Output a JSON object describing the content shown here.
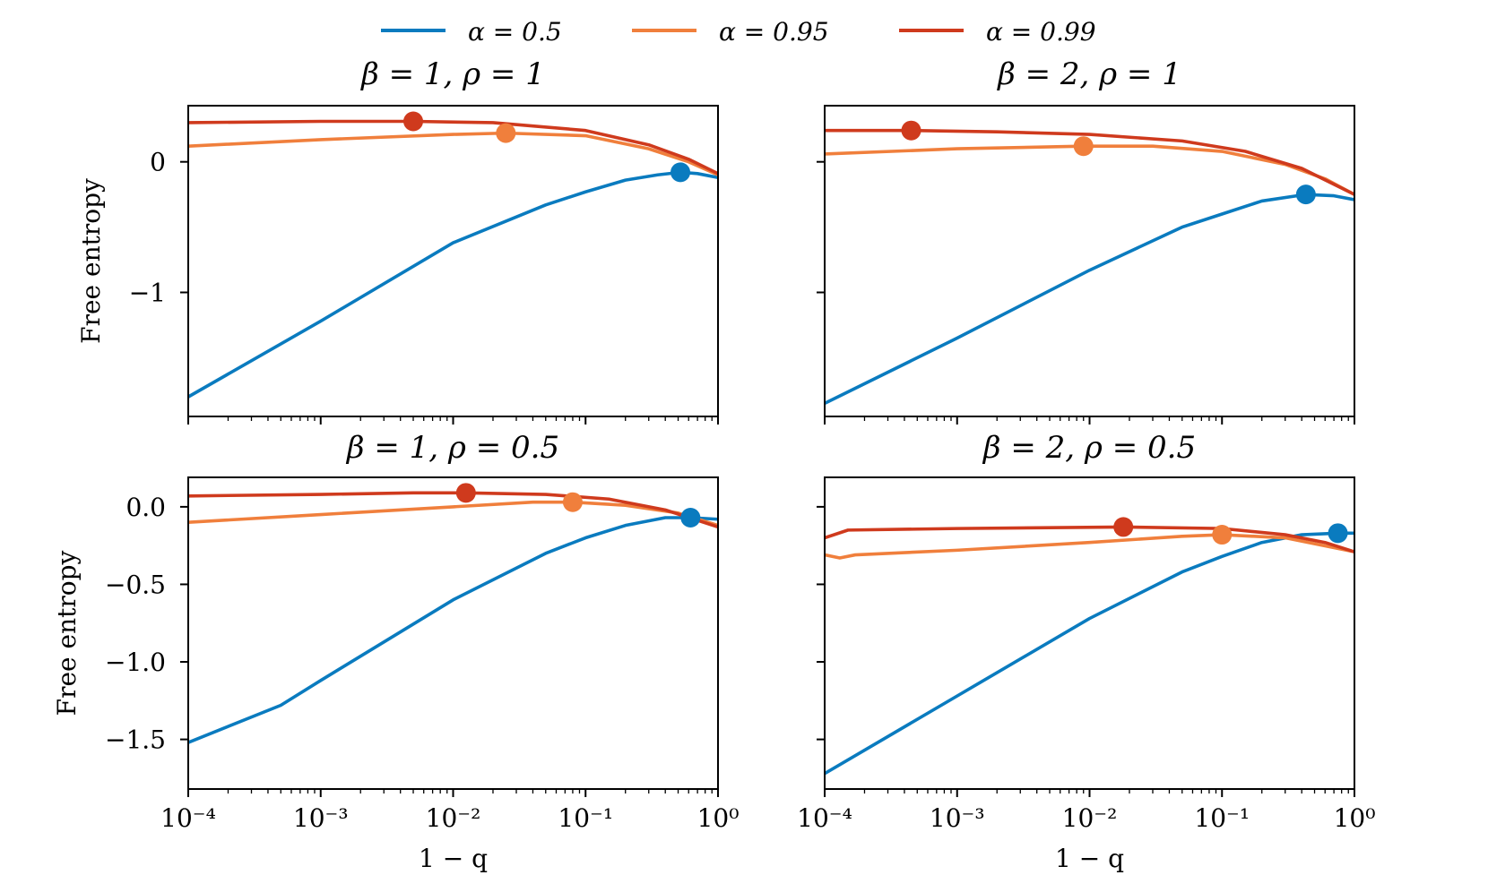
{
  "colors": {
    "alpha_0_5": "#0a7bbf",
    "alpha_0_95": "#f07f3c",
    "alpha_0_99": "#cf3a1d"
  },
  "legend": {
    "entries": [
      {
        "label": "α = 0.5",
        "color": "#0a7bbf"
      },
      {
        "label": "α = 0.95",
        "color": "#f07f3c"
      },
      {
        "label": "α = 0.99",
        "color": "#cf3a1d"
      }
    ]
  },
  "chart_data": [
    {
      "type": "line",
      "title": "β = 1, ρ = 1",
      "xlabel": "",
      "ylabel": "Free entropy",
      "xscale": "log",
      "xlim": [
        0.0001,
        1
      ],
      "ylim": [
        -1.95,
        0.43
      ],
      "yticks": [
        0,
        -1
      ],
      "ytick_labels": [
        "0",
        "−1"
      ],
      "xtick_labels": [],
      "series": [
        {
          "name": "α = 0.5",
          "x": [
            0.0001,
            0.001,
            0.01,
            0.05,
            0.1,
            0.2,
            0.35,
            0.52,
            0.7,
            1.0
          ],
          "y": [
            -1.8,
            -1.22,
            -0.62,
            -0.33,
            -0.23,
            -0.14,
            -0.1,
            -0.08,
            -0.09,
            -0.12
          ],
          "marker": {
            "x": 0.52,
            "y": -0.08
          }
        },
        {
          "name": "α = 0.95",
          "x": [
            0.0001,
            0.001,
            0.01,
            0.025,
            0.1,
            0.3,
            0.6,
            1.0
          ],
          "y": [
            0.12,
            0.17,
            0.21,
            0.22,
            0.2,
            0.1,
            0.0,
            -0.1
          ],
          "marker": {
            "x": 0.025,
            "y": 0.22
          }
        },
        {
          "name": "α = 0.99",
          "x": [
            0.0001,
            0.001,
            0.005,
            0.02,
            0.1,
            0.3,
            0.6,
            1.0
          ],
          "y": [
            0.3,
            0.31,
            0.31,
            0.3,
            0.24,
            0.13,
            0.02,
            -0.09
          ],
          "marker": {
            "x": 0.005,
            "y": 0.31
          }
        }
      ]
    },
    {
      "type": "line",
      "title": "β = 2, ρ = 1",
      "xlabel": "",
      "ylabel": "",
      "xscale": "log",
      "xlim": [
        0.0001,
        1
      ],
      "ylim": [
        -1.95,
        0.43
      ],
      "yticks": [
        0,
        -1
      ],
      "ytick_labels": [],
      "xtick_labels": [],
      "series": [
        {
          "name": "α = 0.5",
          "x": [
            0.0001,
            0.001,
            0.01,
            0.05,
            0.1,
            0.2,
            0.43,
            0.7,
            1.0
          ],
          "y": [
            -1.85,
            -1.35,
            -0.83,
            -0.5,
            -0.4,
            -0.3,
            -0.25,
            -0.26,
            -0.29
          ],
          "marker": {
            "x": 0.43,
            "y": -0.25
          }
        },
        {
          "name": "α = 0.95",
          "x": [
            0.0001,
            0.001,
            0.009,
            0.03,
            0.1,
            0.3,
            0.6,
            1.0
          ],
          "y": [
            0.06,
            0.1,
            0.12,
            0.12,
            0.08,
            -0.02,
            -0.13,
            -0.25
          ],
          "marker": {
            "x": 0.009,
            "y": 0.12
          }
        },
        {
          "name": "α = 0.99",
          "x": [
            0.0001,
            0.00045,
            0.002,
            0.01,
            0.05,
            0.15,
            0.4,
            1.0
          ],
          "y": [
            0.24,
            0.24,
            0.23,
            0.21,
            0.16,
            0.08,
            -0.05,
            -0.25
          ],
          "marker": {
            "x": 0.00045,
            "y": 0.24
          }
        }
      ]
    },
    {
      "type": "line",
      "title": "β = 1, ρ = 0.5",
      "xlabel": "1 − q",
      "ylabel": "Free entropy",
      "xscale": "log",
      "xlim": [
        0.0001,
        1
      ],
      "ylim": [
        -1.82,
        0.19
      ],
      "yticks": [
        0.0,
        -0.5,
        -1.0,
        -1.5
      ],
      "ytick_labels": [
        "0.0",
        "−0.5",
        "−1.0",
        "−1.5"
      ],
      "xtick_labels": [
        "10⁻⁴",
        "10⁻³",
        "10⁻²",
        "10⁻¹",
        "10⁰"
      ],
      "series": [
        {
          "name": "α = 0.5",
          "x": [
            0.0001,
            0.0005,
            0.001,
            0.01,
            0.05,
            0.1,
            0.2,
            0.4,
            0.62,
            1.0
          ],
          "y": [
            -1.52,
            -1.28,
            -1.12,
            -0.6,
            -0.3,
            -0.2,
            -0.12,
            -0.07,
            -0.07,
            -0.08
          ],
          "marker": {
            "x": 0.62,
            "y": -0.07
          }
        },
        {
          "name": "α = 0.95",
          "x": [
            0.0001,
            0.001,
            0.01,
            0.04,
            0.08,
            0.2,
            0.5,
            1.0
          ],
          "y": [
            -0.1,
            -0.05,
            0.0,
            0.03,
            0.03,
            0.01,
            -0.04,
            -0.12
          ],
          "marker": {
            "x": 0.08,
            "y": 0.03
          }
        },
        {
          "name": "α = 0.99",
          "x": [
            0.0001,
            0.001,
            0.005,
            0.0125,
            0.05,
            0.15,
            0.4,
            1.0
          ],
          "y": [
            0.07,
            0.08,
            0.09,
            0.09,
            0.08,
            0.05,
            -0.02,
            -0.13
          ],
          "marker": {
            "x": 0.0125,
            "y": 0.09
          }
        }
      ]
    },
    {
      "type": "line",
      "title": "β = 2, ρ = 0.5",
      "xlabel": "1 − q",
      "ylabel": "",
      "xscale": "log",
      "xlim": [
        0.0001,
        1
      ],
      "ylim": [
        -1.82,
        0.19
      ],
      "yticks": [
        0.0,
        -0.5,
        -1.0,
        -1.5
      ],
      "ytick_labels": [],
      "xtick_labels": [
        "10⁻⁴",
        "10⁻³",
        "10⁻²",
        "10⁻¹",
        "10⁰"
      ],
      "series": [
        {
          "name": "α = 0.5",
          "x": [
            0.0001,
            0.001,
            0.01,
            0.05,
            0.1,
            0.2,
            0.4,
            0.75,
            1.0
          ],
          "y": [
            -1.72,
            -1.22,
            -0.72,
            -0.42,
            -0.32,
            -0.23,
            -0.18,
            -0.17,
            -0.17
          ],
          "marker": {
            "x": 0.75,
            "y": -0.17
          }
        },
        {
          "name": "α = 0.95",
          "x": [
            0.0001,
            0.00013,
            0.00017,
            0.001,
            0.01,
            0.05,
            0.1,
            0.3,
            1.0
          ],
          "y": [
            -0.31,
            -0.33,
            -0.31,
            -0.28,
            -0.23,
            -0.19,
            -0.18,
            -0.2,
            -0.29
          ],
          "marker": {
            "x": 0.1,
            "y": -0.18
          }
        },
        {
          "name": "α = 0.99",
          "x": [
            0.0001,
            0.00015,
            0.001,
            0.018,
            0.1,
            0.3,
            0.6,
            1.0
          ],
          "y": [
            -0.2,
            -0.15,
            -0.14,
            -0.13,
            -0.14,
            -0.18,
            -0.23,
            -0.29
          ],
          "marker": {
            "x": 0.018,
            "y": -0.13
          }
        }
      ]
    }
  ]
}
